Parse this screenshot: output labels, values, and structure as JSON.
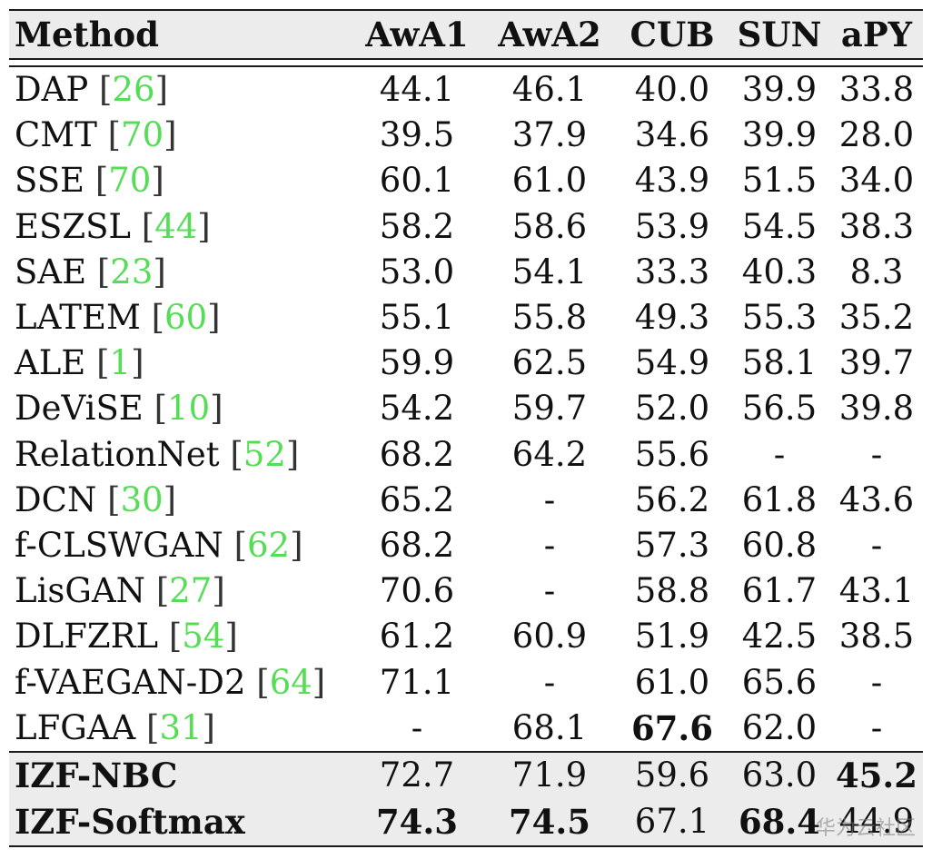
{
  "table": {
    "columns": [
      "Method",
      "AwA1",
      "AwA2",
      "CUB",
      "SUN",
      "aPY"
    ],
    "baselines": [
      {
        "name": "DAP",
        "cite": "26",
        "values": [
          "44.1",
          "46.1",
          "40.0",
          "39.9",
          "33.8"
        ],
        "bold": []
      },
      {
        "name": "CMT",
        "cite": "70",
        "values": [
          "39.5",
          "37.9",
          "34.6",
          "39.9",
          "28.0"
        ],
        "bold": []
      },
      {
        "name": "SSE",
        "cite": "70",
        "values": [
          "60.1",
          "61.0",
          "43.9",
          "51.5",
          "34.0"
        ],
        "bold": []
      },
      {
        "name": "ESZSL",
        "cite": "44",
        "values": [
          "58.2",
          "58.6",
          "53.9",
          "54.5",
          "38.3"
        ],
        "bold": []
      },
      {
        "name": "SAE",
        "cite": "23",
        "values": [
          "53.0",
          "54.1",
          "33.3",
          "40.3",
          "8.3"
        ],
        "bold": []
      },
      {
        "name": "LATEM",
        "cite": "60",
        "values": [
          "55.1",
          "55.8",
          "49.3",
          "55.3",
          "35.2"
        ],
        "bold": []
      },
      {
        "name": "ALE",
        "cite": "1",
        "values": [
          "59.9",
          "62.5",
          "54.9",
          "58.1",
          "39.7"
        ],
        "bold": []
      },
      {
        "name": "DeViSE",
        "cite": "10",
        "values": [
          "54.2",
          "59.7",
          "52.0",
          "56.5",
          "39.8"
        ],
        "bold": []
      },
      {
        "name": "RelationNet",
        "cite": "52",
        "values": [
          "68.2",
          "64.2",
          "55.6",
          "-",
          "-"
        ],
        "bold": []
      },
      {
        "name": "DCN",
        "cite": "30",
        "values": [
          "65.2",
          "-",
          "56.2",
          "61.8",
          "43.6"
        ],
        "bold": []
      },
      {
        "name": "f-CLSWGAN",
        "cite": "62",
        "values": [
          "68.2",
          "-",
          "57.3",
          "60.8",
          "-"
        ],
        "bold": []
      },
      {
        "name": "LisGAN",
        "cite": "27",
        "values": [
          "70.6",
          "-",
          "58.8",
          "61.7",
          "43.1"
        ],
        "bold": []
      },
      {
        "name": "DLFZRL",
        "cite": "54",
        "values": [
          "61.2",
          "60.9",
          "51.9",
          "42.5",
          "38.5"
        ],
        "bold": []
      },
      {
        "name": "f-VAEGAN-D2",
        "cite": "64",
        "values": [
          "71.1",
          "-",
          "61.0",
          "65.6",
          "-"
        ],
        "bold": []
      },
      {
        "name": "LFGAA",
        "cite": "31",
        "values": [
          "-",
          "68.1",
          "67.6",
          "62.0",
          "-"
        ],
        "bold": [
          2
        ]
      }
    ],
    "ours": [
      {
        "name": "IZF-NBC",
        "values": [
          "72.7",
          "71.9",
          "59.6",
          "63.0",
          "45.2"
        ],
        "bold": [
          4
        ]
      },
      {
        "name": "IZF-Softmax",
        "values": [
          "74.3",
          "74.5",
          "67.1",
          "68.4",
          "44.9"
        ],
        "bold": [
          0,
          1,
          3
        ]
      }
    ]
  },
  "watermark": "华为云社区"
}
